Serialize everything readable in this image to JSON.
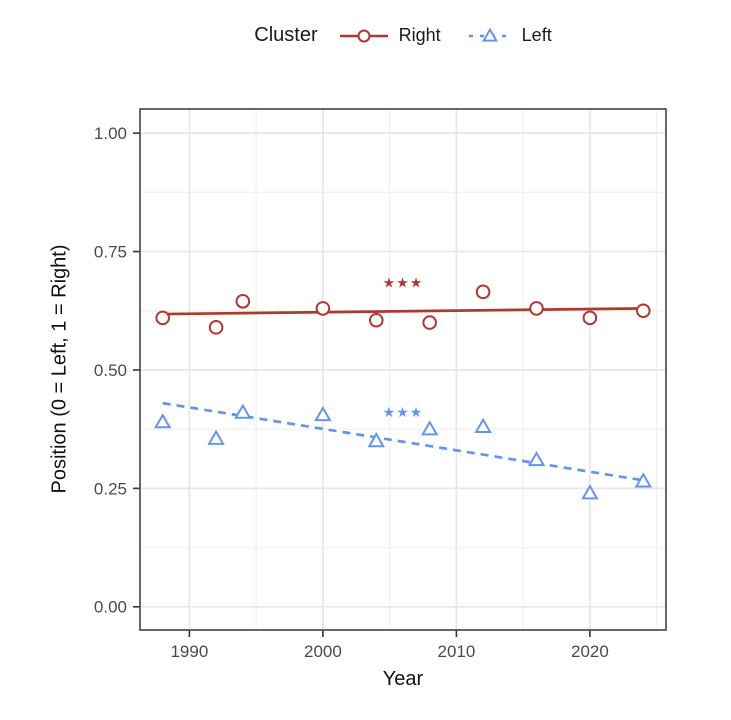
{
  "legend": {
    "title": "Cluster",
    "items": [
      {
        "label": "Right",
        "marker": "circle-solid-line",
        "color": "#B0392F"
      },
      {
        "label": "Left",
        "marker": "triangle-dashed-line",
        "color": "#6495ED"
      }
    ]
  },
  "chart_data": {
    "type": "scatter",
    "title": "",
    "xlabel": "Year",
    "ylabel": "Position (0 = Left, 1 = Right)",
    "x": [
      1988,
      1992,
      1994,
      2000,
      2004,
      2008,
      2012,
      2016,
      2020,
      2024
    ],
    "series": [
      {
        "name": "Right",
        "marker": "circle",
        "color": "#B0392F",
        "line": "solid",
        "values": [
          0.61,
          0.59,
          0.645,
          0.63,
          0.605,
          0.6,
          0.665,
          0.63,
          0.61,
          0.625
        ],
        "trend": {
          "x1": 1988,
          "y1": 0.618,
          "x2": 2024,
          "y2": 0.63
        },
        "annotation": {
          "text": "★★★",
          "x": 2006,
          "y": 0.685
        }
      },
      {
        "name": "Left",
        "marker": "triangle",
        "color": "#6495ED",
        "line": "dashed",
        "values": [
          0.39,
          0.355,
          0.41,
          0.405,
          0.35,
          0.375,
          0.38,
          0.31,
          0.24,
          0.265
        ],
        "trend": {
          "x1": 1988,
          "y1": 0.43,
          "x2": 2024,
          "y2": 0.267
        },
        "annotation": {
          "text": "★★★",
          "x": 2006,
          "y": 0.411
        }
      }
    ],
    "x_ticks": [
      "1990",
      "2000",
      "2010",
      "2020"
    ],
    "y_ticks": [
      "1.00",
      "0.75",
      "0.50",
      "0.25",
      "0.00"
    ],
    "xlim": [
      1986.3,
      2025.7
    ],
    "ylim": [
      -0.049,
      1.051
    ],
    "grid": true,
    "legend_position": "top",
    "colors": {
      "grid_major": "#e7e7e7",
      "grid_minor": "#f2f2f2",
      "panel_border": "#4d4d4d",
      "tick_mark": "#333333",
      "tick_label": "#4a4a4a"
    }
  }
}
